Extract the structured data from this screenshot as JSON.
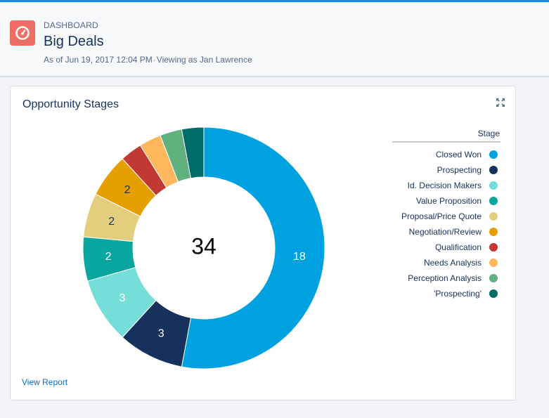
{
  "header": {
    "eyebrow": "DASHBOARD",
    "title": "Big Deals",
    "as_of": "As of Jun 19, 2017 12:04 PM",
    "separator": "·",
    "viewing_as": "Viewing as Jan Lawrence",
    "icon": "dashboard-gauge-icon",
    "icon_color": "#ef6e64"
  },
  "card": {
    "title": "Opportunity Stages",
    "expand_icon": "expand-icon",
    "view_report_label": "View Report"
  },
  "chart_data": {
    "type": "donut",
    "total_label": "34",
    "legend_title": "Stage",
    "series": [
      {
        "name": "Closed Won",
        "value": 18,
        "color": "#00a1e0",
        "label": "18",
        "label_color": "#ffffff"
      },
      {
        "name": "Prospecting",
        "value": 3,
        "color": "#16325c",
        "label": "3",
        "label_color": "#ffffff"
      },
      {
        "name": "Id. Decision Makers",
        "value": 3,
        "color": "#76ded9",
        "label": "3",
        "label_color": "#ffffff"
      },
      {
        "name": "Value Proposition",
        "value": 2,
        "color": "#08a69e",
        "label": "2",
        "label_color": "#ffffff"
      },
      {
        "name": "Proposal/Price Quote",
        "value": 2,
        "color": "#e2ce7d",
        "label": "2",
        "label_color": "#16325c"
      },
      {
        "name": "Negotiation/Review",
        "value": 2,
        "color": "#e69f00",
        "label": "2",
        "label_color": "#16325c"
      },
      {
        "name": "Qualification",
        "value": 1,
        "color": "#c23934",
        "label": "",
        "label_color": "#ffffff"
      },
      {
        "name": "Needs Analysis",
        "value": 1,
        "color": "#ffb75d",
        "label": "",
        "label_color": "#ffffff"
      },
      {
        "name": "Perception Analysis",
        "value": 1,
        "color": "#60b17d",
        "label": "",
        "label_color": "#ffffff"
      },
      {
        "name": "'Prospecting'",
        "value": 1,
        "color": "#006c68",
        "label": "",
        "label_color": "#ffffff"
      }
    ]
  }
}
